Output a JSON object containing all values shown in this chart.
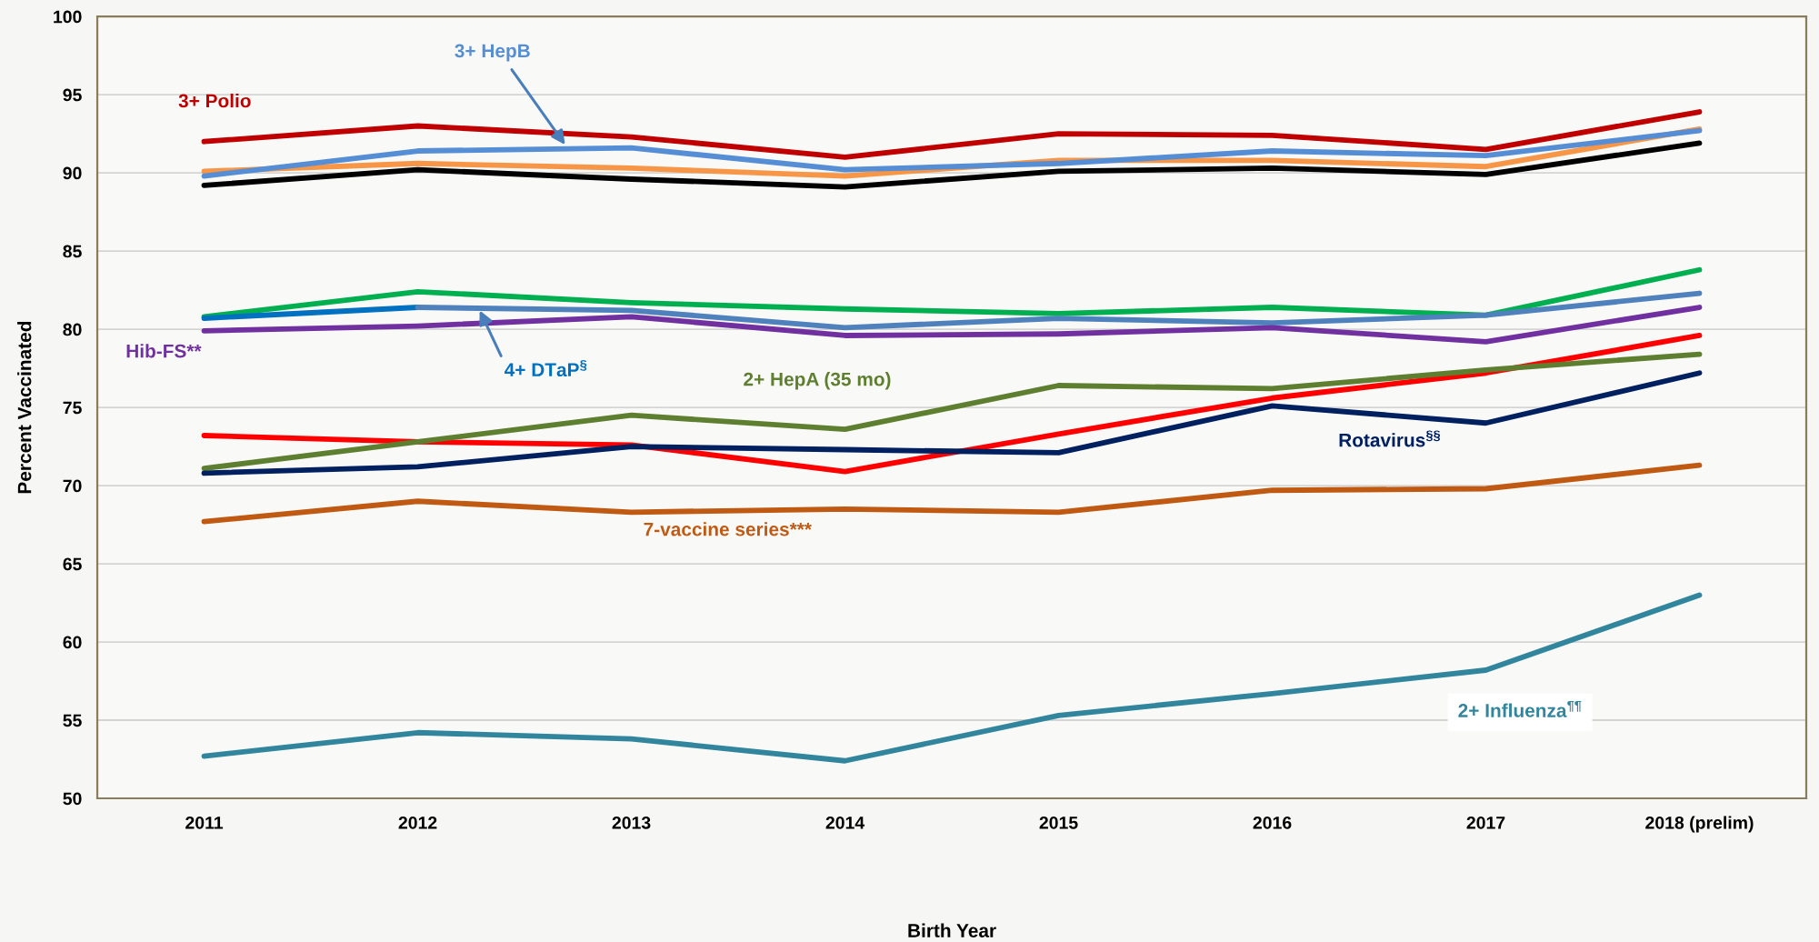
{
  "chart_data": {
    "type": "line",
    "xlabel": "Birth Year",
    "ylabel": "Percent Vaccinated",
    "categories": [
      "2011",
      "2012",
      "2013",
      "2014",
      "2015",
      "2016",
      "2017",
      "2018 (prelim)"
    ],
    "ylim": [
      50,
      100
    ],
    "yticks": [
      50,
      55,
      60,
      65,
      70,
      75,
      80,
      85,
      90,
      95,
      100
    ],
    "grid": "y",
    "legend": false,
    "marker": "none",
    "line_style": "solid",
    "series": [
      {
        "name": "3+ Polio",
        "color": "#c00000",
        "values": [
          92.0,
          93.0,
          92.3,
          91.0,
          92.5,
          92.4,
          91.5,
          93.9
        ]
      },
      {
        "color": "#f79646",
        "values": [
          90.1,
          90.6,
          90.3,
          89.8,
          90.8,
          90.8,
          90.4,
          92.8
        ]
      },
      {
        "color": "#000000",
        "values": [
          89.2,
          90.2,
          89.6,
          89.1,
          90.1,
          90.3,
          89.9,
          91.9
        ]
      },
      {
        "name": "3+ HepB",
        "color": "#558ed5",
        "values": [
          89.8,
          91.4,
          91.6,
          90.2,
          90.6,
          91.4,
          91.1,
          92.7
        ]
      },
      {
        "color": "#00b050",
        "values": [
          80.8,
          82.4,
          81.7,
          81.3,
          81.0,
          81.4,
          80.9,
          83.8
        ]
      },
      {
        "name": "4+ DTaP$^{§}$",
        "color": "#0070c0",
        "values": [
          80.7,
          81.4,
          null,
          null,
          null,
          null,
          null,
          null
        ]
      },
      {
        "color": "#4f81bd",
        "values": [
          null,
          81.4,
          81.2,
          80.1,
          80.7,
          80.4,
          80.9,
          82.3
        ]
      },
      {
        "name": "Hib-FS**",
        "color": "#7030a0",
        "values": [
          79.9,
          80.2,
          80.8,
          79.6,
          79.7,
          80.1,
          79.2,
          81.4
        ]
      },
      {
        "color": "#ff0000",
        "values": [
          73.2,
          72.8,
          72.6,
          70.9,
          73.3,
          75.6,
          77.2,
          79.6
        ]
      },
      {
        "name": "2+ HepA (35 mo)",
        "color": "#5e7e30",
        "values": [
          71.1,
          72.8,
          74.5,
          73.6,
          76.4,
          76.2,
          77.4,
          78.4
        ]
      },
      {
        "name": "Rotavirus$^{§§}$",
        "color": "#002060",
        "values": [
          70.8,
          71.2,
          72.5,
          72.3,
          72.1,
          75.1,
          74.0,
          77.2
        ]
      },
      {
        "name": "7-vaccine series***",
        "color": "#c05a12",
        "values": [
          67.7,
          69.0,
          68.3,
          68.5,
          68.3,
          69.7,
          69.8,
          71.3
        ]
      },
      {
        "name": "2+ Influenza$^{¶¶}$",
        "color": "#31859c",
        "values": [
          52.7,
          54.2,
          53.8,
          52.4,
          55.3,
          56.7,
          58.2,
          63.0
        ]
      }
    ]
  }
}
